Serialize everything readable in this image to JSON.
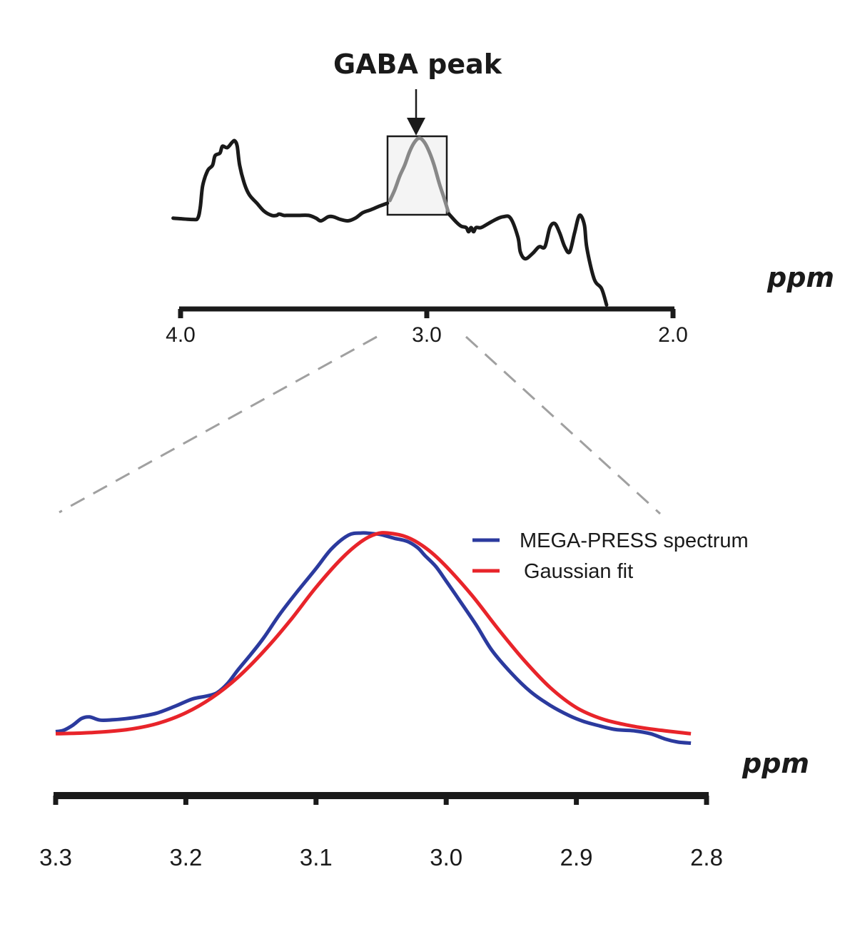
{
  "chart_data": [
    {
      "type": "line",
      "title": "GABA peak",
      "xlabel": "ppm",
      "ylabel": "",
      "xlim": [
        4.0,
        2.0
      ],
      "x_reversed": true,
      "x_ticks": [
        "4.0",
        "3.0",
        "2.0"
      ],
      "x_tick_values": [
        4.0,
        3.0,
        2.0
      ],
      "highlight": {
        "label": "GABA peak",
        "x_range": [
          3.15,
          2.91
        ],
        "color": "#888888"
      },
      "series": [
        {
          "name": "spectrum",
          "color": "#1a1a1a",
          "x": [
            4.03,
            3.95,
            3.93,
            3.92,
            3.91,
            3.89,
            3.87,
            3.86,
            3.84,
            3.83,
            3.81,
            3.79,
            3.78,
            3.77,
            3.76,
            3.74,
            3.72,
            3.69,
            3.66,
            3.63,
            3.61,
            3.6,
            3.58,
            3.57,
            3.55,
            3.52,
            3.48,
            3.45,
            3.43,
            3.4,
            3.38,
            3.35,
            3.32,
            3.29,
            3.26,
            3.23,
            3.19,
            3.16
          ],
          "y": [
            0.47,
            0.46,
            0.47,
            0.55,
            0.71,
            0.82,
            0.86,
            0.93,
            0.95,
            1.0,
            0.99,
            1.03,
            1.04,
            1.0,
            0.86,
            0.72,
            0.64,
            0.58,
            0.52,
            0.49,
            0.49,
            0.5,
            0.49,
            0.49,
            0.49,
            0.49,
            0.49,
            0.47,
            0.45,
            0.48,
            0.48,
            0.46,
            0.45,
            0.47,
            0.51,
            0.53,
            0.56,
            0.58
          ]
        },
        {
          "name": "gaba-peak",
          "color": "#888888",
          "x": [
            3.15,
            3.13,
            3.11,
            3.09,
            3.07,
            3.05,
            3.03,
            3.01,
            2.99,
            2.97,
            2.95,
            2.93,
            2.91
          ],
          "y": [
            0.6,
            0.68,
            0.78,
            0.86,
            0.96,
            1.03,
            1.06,
            1.03,
            0.96,
            0.86,
            0.73,
            0.62,
            0.5
          ]
        },
        {
          "name": "spectrum-right",
          "color": "#1a1a1a",
          "x": [
            2.91,
            2.88,
            2.86,
            2.84,
            2.83,
            2.82,
            2.81,
            2.8,
            2.78,
            2.75,
            2.72,
            2.69,
            2.66,
            2.63,
            2.62,
            2.6,
            2.57,
            2.55,
            2.54,
            2.52,
            2.5,
            2.48,
            2.46,
            2.44,
            2.42,
            2.4,
            2.38,
            2.36,
            2.35,
            2.32,
            2.29,
            2.27
          ],
          "y": [
            0.5,
            0.44,
            0.41,
            0.4,
            0.37,
            0.4,
            0.37,
            0.4,
            0.4,
            0.43,
            0.46,
            0.48,
            0.47,
            0.33,
            0.22,
            0.17,
            0.21,
            0.25,
            0.26,
            0.26,
            0.4,
            0.43,
            0.36,
            0.26,
            0.22,
            0.36,
            0.49,
            0.42,
            0.25,
            0.02,
            -0.05,
            -0.17
          ]
        }
      ]
    },
    {
      "type": "line",
      "title": "",
      "xlabel": "ppm",
      "ylabel": "",
      "xlim": [
        3.3,
        2.8
      ],
      "ylim": [
        0,
        1
      ],
      "x_reversed": true,
      "x_ticks": [
        "3.3",
        "3.2",
        "3.1",
        "3.0",
        "2.9",
        "2.8"
      ],
      "x_tick_values": [
        3.3,
        3.2,
        3.1,
        3.0,
        2.9,
        2.8
      ],
      "legend": {
        "position": "top-right",
        "entries": [
          "MEGA-PRESS spectrum",
          "Gaussian fit"
        ]
      },
      "series": [
        {
          "name": "MEGA-PRESS spectrum",
          "color": "#2b3a9e",
          "x": [
            3.3,
            3.294,
            3.287,
            3.28,
            3.274,
            3.266,
            3.257,
            3.246,
            3.235,
            3.222,
            3.208,
            3.195,
            3.184,
            3.176,
            3.168,
            3.16,
            3.15,
            3.14,
            3.128,
            3.115,
            3.1,
            3.088,
            3.075,
            3.065,
            3.058,
            3.05,
            3.04,
            3.03,
            3.022,
            3.016,
            3.008,
            3.0,
            2.99,
            2.977,
            2.965,
            2.95,
            2.935,
            2.92,
            2.905,
            2.895,
            2.885,
            2.87,
            2.856,
            2.843,
            2.832,
            2.822,
            2.812
          ],
          "y": [
            0.05,
            0.056,
            0.08,
            0.113,
            0.12,
            0.105,
            0.106,
            0.112,
            0.122,
            0.139,
            0.172,
            0.206,
            0.22,
            0.236,
            0.28,
            0.345,
            0.42,
            0.5,
            0.61,
            0.715,
            0.83,
            0.925,
            0.99,
            1.0,
            0.998,
            0.992,
            0.975,
            0.96,
            0.93,
            0.89,
            0.84,
            0.77,
            0.68,
            0.56,
            0.44,
            0.33,
            0.24,
            0.175,
            0.125,
            0.1,
            0.082,
            0.06,
            0.054,
            0.04,
            0.015,
            0.0,
            -0.005
          ]
        },
        {
          "name": "Gaussian fit",
          "color": "#e8242a",
          "x": [
            3.3,
            3.28,
            3.26,
            3.24,
            3.22,
            3.2,
            3.18,
            3.16,
            3.14,
            3.12,
            3.1,
            3.08,
            3.065,
            3.054,
            3.045,
            3.03,
            3.015,
            3.0,
            2.98,
            2.96,
            2.94,
            2.92,
            2.9,
            2.88,
            2.86,
            2.84,
            2.812
          ],
          "y": [
            0.04,
            0.043,
            0.05,
            0.064,
            0.092,
            0.14,
            0.212,
            0.31,
            0.435,
            0.58,
            0.74,
            0.88,
            0.96,
            0.995,
            1.0,
            0.98,
            0.925,
            0.84,
            0.7,
            0.54,
            0.39,
            0.26,
            0.165,
            0.11,
            0.08,
            0.06,
            0.04
          ]
        }
      ]
    }
  ]
}
